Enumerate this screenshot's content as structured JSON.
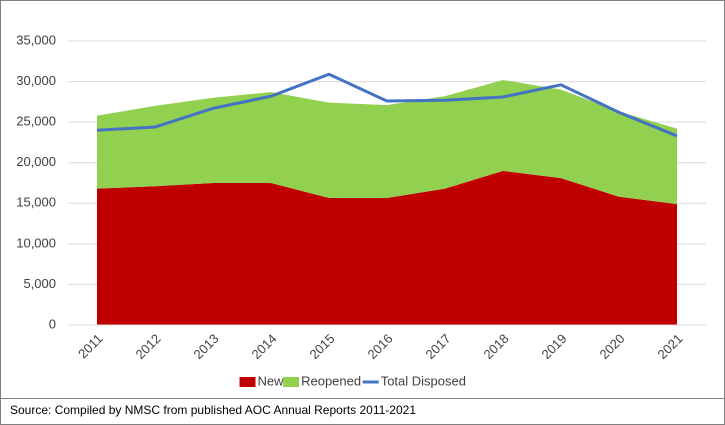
{
  "chart_data": {
    "type": "stacked_area_line",
    "categories": [
      "2011",
      "2012",
      "2013",
      "2014",
      "2015",
      "2016",
      "2017",
      "2018",
      "2019",
      "2020",
      "2021"
    ],
    "series": [
      {
        "name": "New",
        "color": "#c00000",
        "kind": "area",
        "values": [
          16800,
          17100,
          17500,
          17500,
          15650,
          15650,
          16800,
          19000,
          18100,
          15800,
          14900
        ]
      },
      {
        "name": "Reopened",
        "color": "#92d050",
        "kind": "area",
        "values": [
          9000,
          9900,
          10500,
          11200,
          11750,
          11450,
          11400,
          11200,
          10900,
          10500,
          9300
        ]
      },
      {
        "name": "Total Disposed",
        "color": "#4472c4",
        "kind": "line",
        "values": [
          24000,
          24400,
          26700,
          28200,
          30900,
          27600,
          27700,
          28100,
          29600,
          26200,
          23300
        ]
      }
    ],
    "ylim": [
      0,
      35000
    ],
    "yticks": [
      0,
      {
        "value": 5000,
        "label": "5,000"
      },
      {
        "value": 10000,
        "label": "10,000"
      },
      {
        "value": 15000,
        "label": "15,000"
      },
      {
        "value": 20000,
        "label": "20,000"
      },
      {
        "value": 25000,
        "label": "25,000"
      },
      {
        "value": 30000,
        "label": "30,000"
      },
      {
        "value": 35000,
        "label": "35,000"
      }
    ],
    "grid": true,
    "legend": "bottom",
    "source": "Source: Compiled by NMSC from published AOC Annual Reports 2011-2021"
  }
}
